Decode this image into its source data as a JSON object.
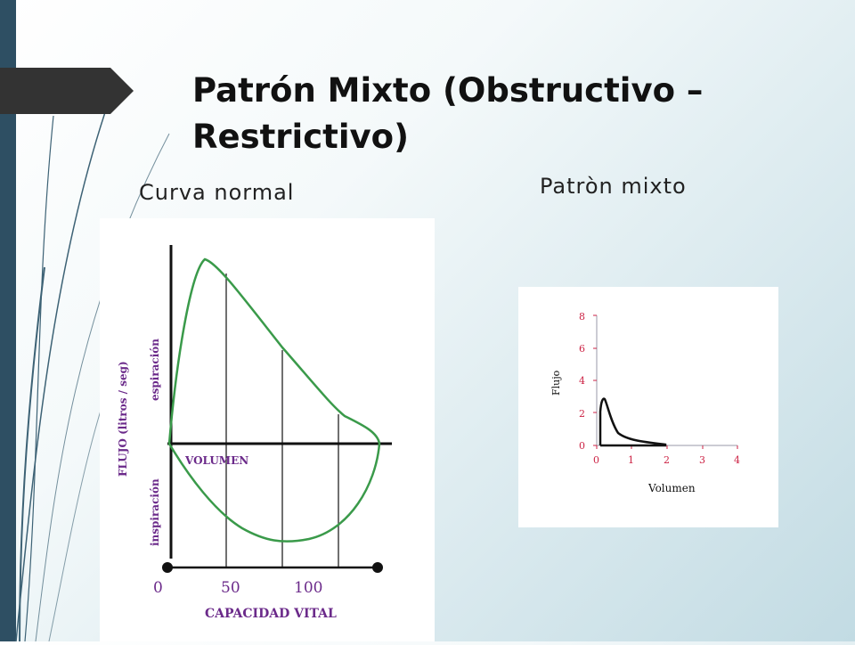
{
  "slide": {
    "title_line1": "Patrón Mixto (Obstructivo –",
    "title_line2": "Restrictivo)",
    "label_normal": "Curva normal",
    "label_mixto": "Patròn mixto"
  },
  "normal_chart": {
    "y_label_top": "espiración",
    "y_label_mid": "FLUJO (litros / seg)",
    "y_label_bottom": "inspiración",
    "volume_label": "VOLUMEN",
    "x_ticks": [
      "0",
      "50",
      "100"
    ],
    "x_title": "CAPACIDAD VITAL"
  },
  "mixto_chart": {
    "ylabel": "Flujo",
    "xlabel": "Volumen",
    "y_ticks": [
      "0",
      "2",
      "4",
      "6",
      "8"
    ],
    "x_ticks": [
      "0",
      "1",
      "2",
      "3",
      "4"
    ]
  },
  "colors": {
    "accent_bar": "#2e4f63",
    "arrow": "#333333",
    "curve_green": "#3a9a4a",
    "label_purple": "#6b2a8a",
    "tick_red": "#cc2244"
  }
}
